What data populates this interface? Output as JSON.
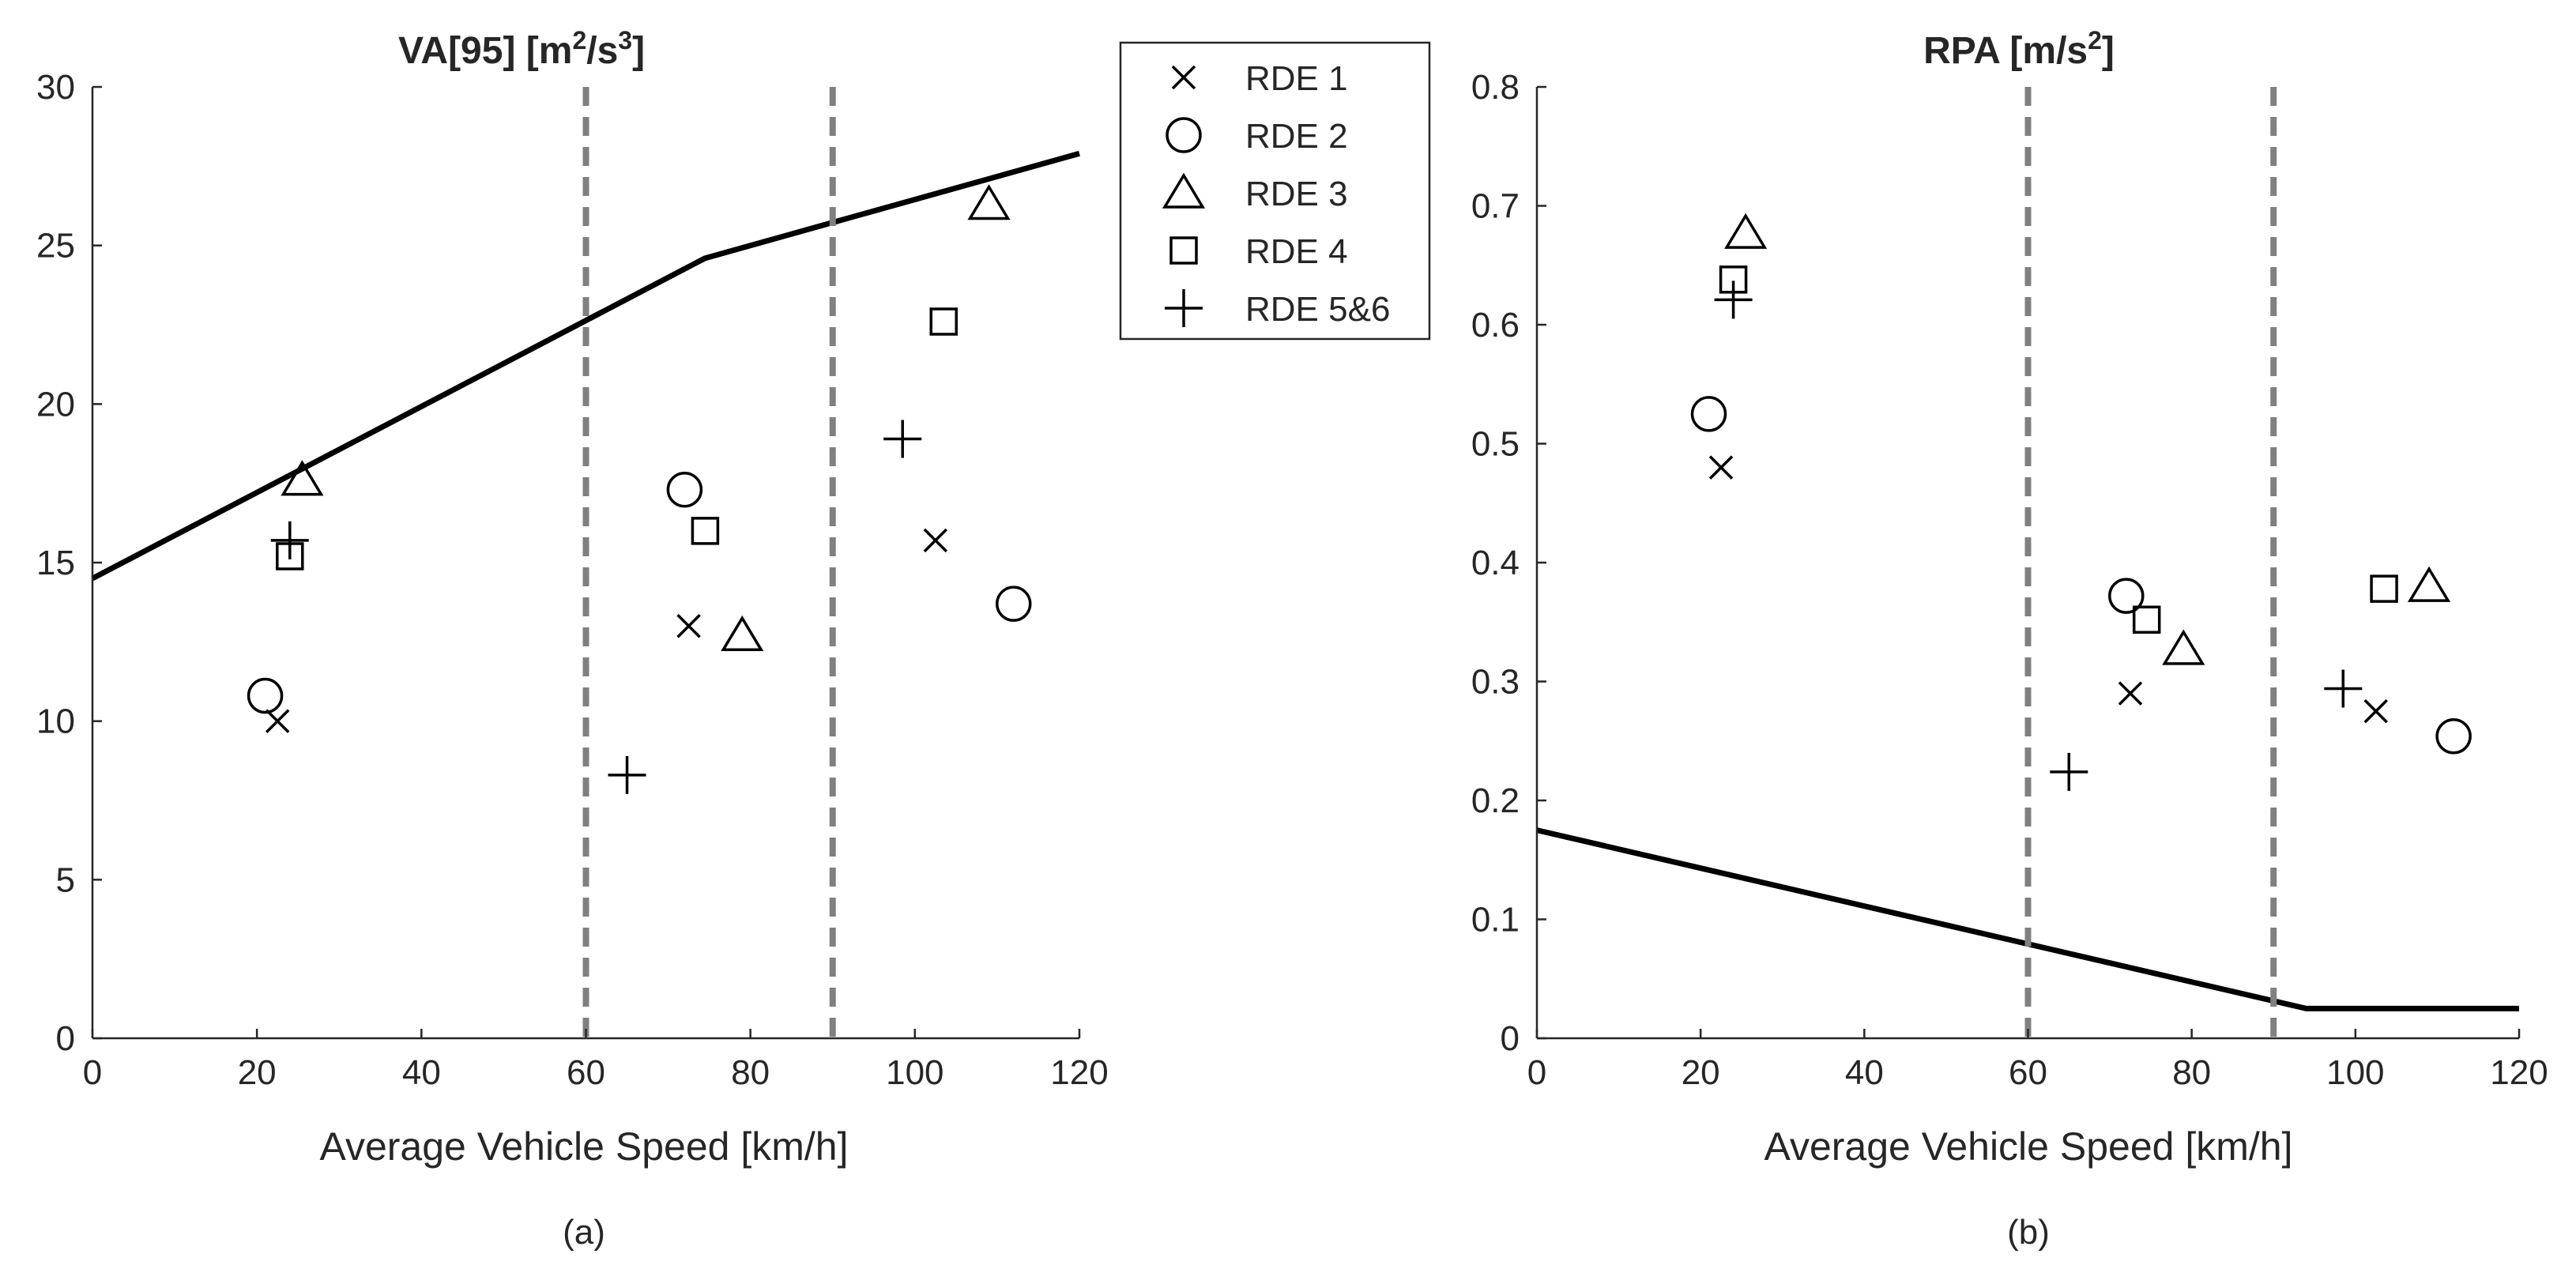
{
  "chart_data": [
    {
      "id": "a",
      "type": "scatter",
      "title": "VA[95] [m²/s³]",
      "title_parts": {
        "base": "VA[95] [m",
        "sup1": "2",
        "mid": "/s",
        "sup2": "3",
        "end": "]"
      },
      "xlabel": "Average Vehicle Speed [km/h]",
      "ylabel": "",
      "caption": "(a)",
      "xlim": [
        0,
        120
      ],
      "ylim": [
        0,
        30
      ],
      "xticks": [
        0,
        20,
        40,
        60,
        80,
        100,
        120
      ],
      "yticks": [
        0,
        5,
        10,
        15,
        20,
        25,
        30
      ],
      "xtick_labels": [
        "0",
        "20",
        "40",
        "60",
        "80",
        "100",
        "120"
      ],
      "ytick_labels": [
        "0",
        "5",
        "10",
        "15",
        "20",
        "25",
        "30"
      ],
      "grid": false,
      "vlines": [
        60,
        90
      ],
      "limit_line": {
        "x": [
          0,
          74.5,
          120
        ],
        "y": [
          14.5,
          24.6,
          27.9
        ]
      },
      "series": [
        {
          "name": "RDE 1",
          "marker": "x",
          "x": [
            22.5,
            72.5,
            102.5
          ],
          "y": [
            10.0,
            13.0,
            15.7
          ]
        },
        {
          "name": "RDE 2",
          "marker": "o",
          "x": [
            21,
            72,
            112
          ],
          "y": [
            10.8,
            17.3,
            13.7
          ]
        },
        {
          "name": "RDE 3",
          "marker": "triangle",
          "x": [
            25.5,
            79,
            109
          ],
          "y": [
            17.6,
            12.7,
            26.3
          ]
        },
        {
          "name": "RDE 4",
          "marker": "square",
          "x": [
            24,
            74.5,
            103.5
          ],
          "y": [
            15.2,
            16.0,
            22.6
          ]
        },
        {
          "name": "RDE 5&6",
          "marker": "plus",
          "x": [
            24,
            65,
            98.5
          ],
          "y": [
            15.7,
            8.3,
            18.9
          ]
        }
      ]
    },
    {
      "id": "b",
      "type": "scatter",
      "title": "RPA [m/s²]",
      "title_parts": {
        "base": "RPA [m/s",
        "sup1": "2",
        "end": "]"
      },
      "xlabel": "Average Vehicle Speed [km/h]",
      "ylabel": "",
      "caption": "(b)",
      "xlim": [
        0,
        120
      ],
      "ylim": [
        0,
        0.8
      ],
      "xticks": [
        0,
        20,
        40,
        60,
        80,
        100,
        120
      ],
      "yticks": [
        0,
        0.1,
        0.2,
        0.3,
        0.4,
        0.5,
        0.6,
        0.7,
        0.8
      ],
      "xtick_labels": [
        "0",
        "20",
        "40",
        "60",
        "80",
        "100",
        "120"
      ],
      "ytick_labels": [
        "0",
        "0.1",
        "0.2",
        "0.3",
        "0.4",
        "0.5",
        "0.6",
        "0.7",
        "0.8"
      ],
      "grid": false,
      "vlines": [
        60,
        90
      ],
      "limit_line": {
        "x": [
          0,
          94,
          120
        ],
        "y": [
          0.175,
          0.025,
          0.025
        ]
      },
      "series": [
        {
          "name": "RDE 1",
          "marker": "x",
          "x": [
            22.5,
            72.5,
            102.5
          ],
          "y": [
            0.48,
            0.29,
            0.275
          ]
        },
        {
          "name": "RDE 2",
          "marker": "o",
          "x": [
            21,
            72,
            112
          ],
          "y": [
            0.525,
            0.372,
            0.254
          ]
        },
        {
          "name": "RDE 3",
          "marker": "triangle",
          "x": [
            25.5,
            79,
            109
          ],
          "y": [
            0.677,
            0.327,
            0.38
          ]
        },
        {
          "name": "RDE 4",
          "marker": "square",
          "x": [
            24,
            74.5,
            103.5
          ],
          "y": [
            0.638,
            0.352,
            0.378
          ]
        },
        {
          "name": "RDE 5&6",
          "marker": "plus",
          "x": [
            24,
            65,
            98.5
          ],
          "y": [
            0.621,
            0.224,
            0.294
          ]
        }
      ]
    }
  ],
  "legend": {
    "placement": "top-center",
    "entries": [
      {
        "label": "RDE 1",
        "marker": "x"
      },
      {
        "label": "RDE 2",
        "marker": "o"
      },
      {
        "label": "RDE 3",
        "marker": "triangle"
      },
      {
        "label": "RDE 4",
        "marker": "square"
      },
      {
        "label": "RDE 5&6",
        "marker": "plus"
      }
    ]
  },
  "colors": {
    "axis": "#262626",
    "limit_line": "#000000",
    "threshold_lines": "#808080",
    "markers": "#000000"
  }
}
